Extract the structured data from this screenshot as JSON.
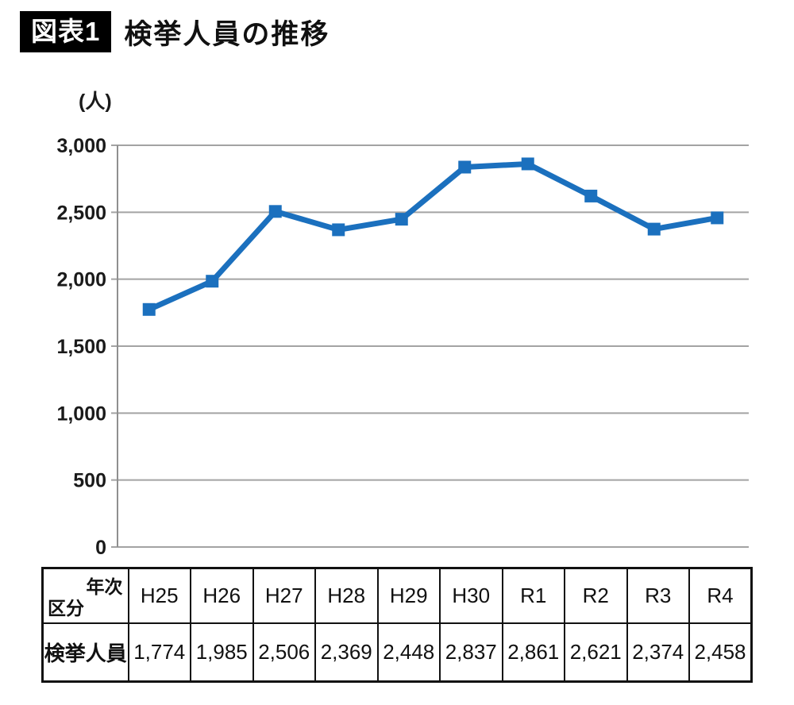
{
  "header": {
    "badge": "図表1",
    "title": "検挙人員の推移"
  },
  "chart_data": {
    "type": "line",
    "title": "検挙人員の推移",
    "unit_label": "(人)",
    "categories": [
      "H25",
      "H26",
      "H27",
      "H28",
      "H29",
      "H30",
      "R1",
      "R2",
      "R3",
      "R4"
    ],
    "values": [
      1774,
      1985,
      2506,
      2369,
      2448,
      2837,
      2861,
      2621,
      2374,
      2458
    ],
    "series_name": "検挙人員",
    "xlabel": "",
    "ylabel": "(人)",
    "ylim": [
      0,
      3000
    ],
    "ytick": 500,
    "grid": true,
    "legend": false,
    "line_color": "#1b70be",
    "marker": "square"
  },
  "table": {
    "corner_top": "年次",
    "corner_bottom": "区分",
    "row_label": "検挙人員",
    "columns": [
      "H25",
      "H26",
      "H27",
      "H28",
      "H29",
      "H30",
      "R1",
      "R2",
      "R3",
      "R4"
    ],
    "values": [
      "1,774",
      "1,985",
      "2,506",
      "2,369",
      "2,448",
      "2,837",
      "2,861",
      "2,621",
      "2,374",
      "2,458"
    ]
  }
}
